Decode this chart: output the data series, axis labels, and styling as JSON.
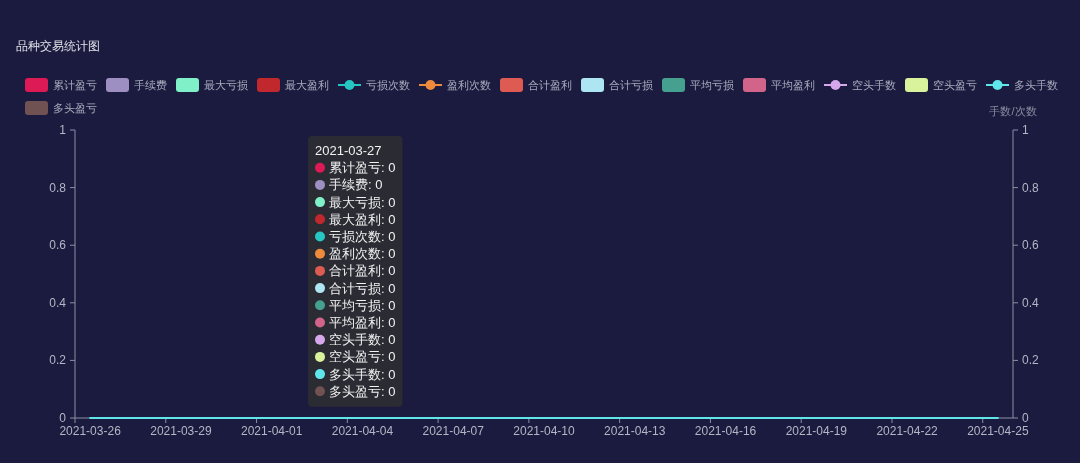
{
  "chart_data": {
    "type": "bar",
    "title": "品种交易统计图",
    "y2label": "手数/次数",
    "categories": [
      "2021-03-26",
      null,
      null,
      "2021-03-29",
      null,
      null,
      "2021-04-01",
      null,
      null,
      "2021-04-04",
      null,
      null,
      "2021-04-07",
      null,
      null,
      "2021-04-10",
      null,
      null,
      "2021-04-13",
      null,
      null,
      "2021-04-16",
      null,
      null,
      "2021-04-19",
      null,
      null,
      "2021-04-22",
      null,
      null,
      "2021-04-25"
    ],
    "series": [
      {
        "name": "累计盈亏",
        "color": "#dd1a55",
        "values": [
          0,
          0,
          0,
          0,
          0,
          0,
          0,
          0,
          0,
          0,
          0,
          0,
          0,
          0,
          0,
          0,
          0,
          0,
          0,
          0,
          0,
          0,
          0,
          0,
          0,
          0,
          0,
          0,
          0,
          0,
          0
        ]
      },
      {
        "name": "手续费",
        "color": "#9d8fc2",
        "values": [
          0,
          0,
          0,
          0,
          0,
          0,
          0,
          0,
          0,
          0,
          0,
          0,
          0,
          0,
          0,
          0,
          0,
          0,
          0,
          0,
          0,
          0,
          0,
          0,
          0,
          0,
          0,
          0,
          0,
          0,
          0
        ]
      },
      {
        "name": "最大亏损",
        "color": "#7ff0c8",
        "values": [
          0,
          0,
          0,
          0,
          0,
          0,
          0,
          0,
          0,
          0,
          0,
          0,
          0,
          0,
          0,
          0,
          0,
          0,
          0,
          0,
          0,
          0,
          0,
          0,
          0,
          0,
          0,
          0,
          0,
          0,
          0
        ]
      },
      {
        "name": "最大盈利",
        "color": "#c1282e",
        "values": [
          0,
          0,
          0,
          0,
          0,
          0,
          0,
          0,
          0,
          0,
          0,
          0,
          0,
          0,
          0,
          0,
          0,
          0,
          0,
          0,
          0,
          0,
          0,
          0,
          0,
          0,
          0,
          0,
          0,
          0,
          0
        ]
      },
      {
        "name": "亏损次数",
        "type": "line",
        "color": "#26c6c2",
        "values": [
          null,
          null,
          null,
          null,
          null,
          null,
          null,
          null,
          null,
          null,
          null,
          null,
          null,
          null,
          null,
          null,
          null,
          null,
          null,
          null,
          null,
          null,
          null,
          null,
          null,
          null,
          null,
          null,
          null,
          null,
          null
        ]
      },
      {
        "name": "盈利次数",
        "type": "line",
        "color": "#ee8a3c",
        "values": [
          null,
          null,
          null,
          null,
          null,
          null,
          null,
          null,
          null,
          null,
          null,
          null,
          null,
          null,
          null,
          null,
          null,
          null,
          null,
          null,
          null,
          null,
          null,
          null,
          null,
          null,
          null,
          null,
          null,
          null,
          null
        ]
      },
      {
        "name": "合计盈利",
        "color": "#dd5b52",
        "values": [
          0,
          0,
          0,
          0,
          0,
          0,
          0,
          0,
          0,
          0,
          0,
          0,
          0,
          0,
          0,
          0,
          0,
          0,
          0,
          0,
          0,
          0,
          0,
          0,
          0,
          0,
          0,
          0,
          0,
          0,
          0
        ]
      },
      {
        "name": "合计亏损",
        "color": "#aee5f2",
        "values": [
          0,
          0,
          0,
          0,
          0,
          0,
          0,
          0,
          0,
          0,
          0,
          0,
          0,
          0,
          0,
          0,
          0,
          0,
          0,
          0,
          0,
          0,
          0,
          0,
          0,
          0,
          0,
          0,
          0,
          0,
          0
        ]
      },
      {
        "name": "平均亏损",
        "color": "#46a08f",
        "values": [
          0,
          0,
          0,
          0,
          0,
          0,
          0,
          0,
          0,
          0,
          0,
          0,
          0,
          0,
          0,
          0,
          0,
          0,
          0,
          0,
          0,
          0,
          0,
          0,
          0,
          0,
          0,
          0,
          0,
          0,
          0
        ]
      },
      {
        "name": "平均盈利",
        "color": "#d2648a",
        "values": [
          0,
          0,
          0,
          0,
          0,
          0,
          0,
          0,
          0,
          0,
          0,
          0,
          0,
          0,
          0,
          0,
          0,
          0,
          0,
          0,
          0,
          0,
          0,
          0,
          0,
          0,
          0,
          0,
          0,
          0,
          0
        ]
      },
      {
        "name": "空头手数",
        "type": "line",
        "color": "#d6a7ea",
        "values": [
          null,
          null,
          null,
          null,
          null,
          null,
          null,
          null,
          null,
          null,
          null,
          null,
          null,
          null,
          null,
          null,
          null,
          null,
          null,
          null,
          null,
          null,
          null,
          null,
          null,
          null,
          null,
          null,
          null,
          null,
          null
        ]
      },
      {
        "name": "空头盈亏",
        "color": "#d9f39d",
        "values": [
          0,
          0,
          0,
          0,
          0,
          0,
          0,
          0,
          0,
          0,
          0,
          0,
          0,
          0,
          0,
          0,
          0,
          0,
          0,
          0,
          0,
          0,
          0,
          0,
          0,
          0,
          0,
          0,
          0,
          0,
          0
        ]
      },
      {
        "name": "多头手数",
        "type": "line",
        "color": "#5fe6ea",
        "values": [
          0,
          0,
          0,
          0,
          0,
          0,
          0,
          0,
          0,
          0,
          0,
          0,
          0,
          0,
          0,
          0,
          0,
          0,
          0,
          0,
          0,
          0,
          0,
          0,
          0,
          0,
          0,
          0,
          0,
          0,
          0
        ]
      },
      {
        "name": "多头盈亏",
        "color": "#715252",
        "values": [
          0,
          0,
          0,
          0,
          0,
          0,
          0,
          0,
          0,
          0,
          0,
          0,
          0,
          0,
          0,
          0,
          0,
          0,
          0,
          0,
          0,
          0,
          0,
          0,
          0,
          0,
          0,
          0,
          0,
          0,
          0
        ]
      }
    ],
    "ylim": [
      0,
      1
    ],
    "yticks": [
      0,
      0.2,
      0.4,
      0.6,
      0.8,
      1
    ],
    "y2lim": [
      0,
      1
    ],
    "y2ticks": [
      0,
      0.2,
      0.4,
      0.6,
      0.8,
      1
    ],
    "grid": false,
    "legend": "top",
    "annotations": [
      "2021-03-27",
      "累计盈亏: 0",
      "手续费: 0",
      "最大亏损: 0",
      "最大盈利: 0",
      "亏损次数: 0",
      "盈利次数: 0",
      "合计盈利: 0",
      "合计亏损: 0",
      "平均亏损: 0",
      "平均盈利: 0",
      "空头手数: 0",
      "空头盈亏: 0",
      "多头手数: 0",
      "多头盈亏: 0"
    ]
  }
}
